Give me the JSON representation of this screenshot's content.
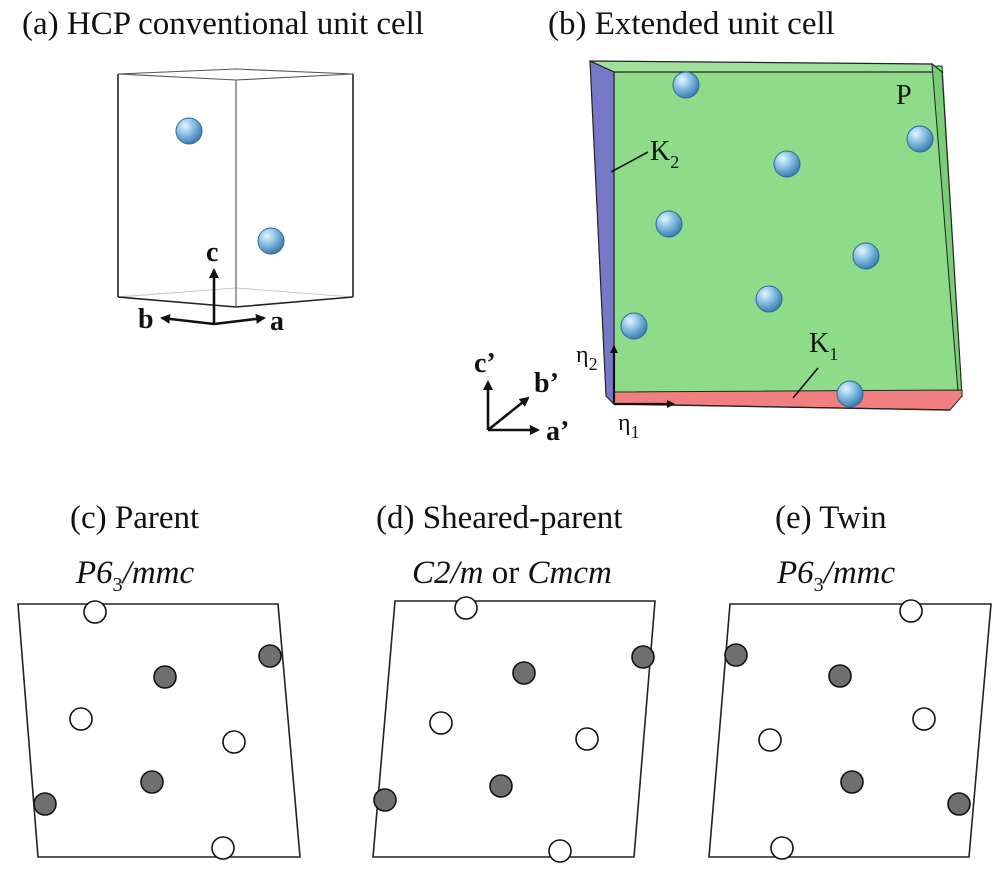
{
  "panels": {
    "a": {
      "title": "(a) HCP conventional unit cell",
      "axes": {
        "c": "c",
        "b": "b",
        "a": "a"
      }
    },
    "b": {
      "title": "(b) Extended unit cell",
      "labels": {
        "K2": "K",
        "K2_sub": "2",
        "K1": "K",
        "K1_sub": "1",
        "P": "P"
      },
      "axes": {
        "c": "c’",
        "b": "b’",
        "a": "a’"
      },
      "eta": {
        "eta1": "η",
        "eta1_sub": "1",
        "eta2": "η",
        "eta2_sub": "2"
      }
    },
    "c": {
      "title": "(c) Parent",
      "sg_main": "P6",
      "sg_sub": "3",
      "sg_rest": "/mmc"
    },
    "d": {
      "title": "(d) Sheared-parent",
      "sg_a": "C2/m",
      "sg_mid": " or ",
      "sg_b": "Cmcm"
    },
    "e": {
      "title": "(e) Twin",
      "sg_main": "P6",
      "sg_sub": "3",
      "sg_rest": "/mmc"
    }
  },
  "colors": {
    "atom_blue": "#8ec3e6",
    "atom_blue_dark": "#3e7fb3",
    "face_P": "#8edc8a",
    "face_K2": "#7878c8",
    "face_K1": "#f08080",
    "atom_filled": "#6f6f6f",
    "atom_open": "#ffffff"
  },
  "legend_note": ""
}
